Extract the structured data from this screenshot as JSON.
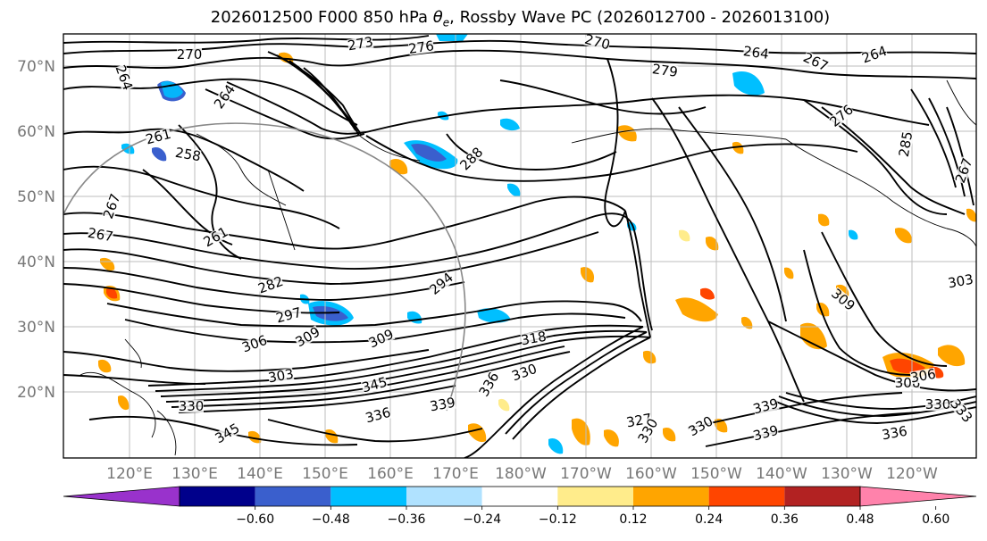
{
  "title": {
    "prefix": "2026012500 F000 850 hPa ",
    "symbol": "θ",
    "symbol_sub": "e",
    "suffix": ", Rossby Wave PC (2026012700 - 2026013100)"
  },
  "map": {
    "projection": "cylindrical (lon 110°E–110°W, lat 10°N–75°N)",
    "lat_ticks": [
      "70°N",
      "60°N",
      "50°N",
      "40°N",
      "30°N",
      "20°N"
    ],
    "lon_ticks": [
      "120°E",
      "130°E",
      "140°E",
      "150°E",
      "160°E",
      "170°E",
      "180°W",
      "170°W",
      "160°W",
      "150°W",
      "140°W",
      "130°W",
      "120°W"
    ],
    "gridlines": true,
    "contour_variable": "850 hPa equivalent potential temperature (K)",
    "contour_labels": [
      "270",
      "273",
      "276",
      "270",
      "264",
      "267",
      "264",
      "279",
      "264",
      "261",
      "258",
      "264",
      "276",
      "285",
      "288",
      "267",
      "267",
      "261",
      "267",
      "282",
      "294",
      "297",
      "306",
      "309",
      "309",
      "318",
      "303",
      "345",
      "330",
      "345",
      "336",
      "339",
      "336",
      "330",
      "327",
      "330",
      "330",
      "339",
      "339",
      "336",
      "306",
      "309",
      "303",
      "306",
      "330",
      "333"
    ],
    "shading_variable": "Rossby Wave PC",
    "coastline_color": "#000000"
  },
  "colorbar": {
    "tick_labels": [
      "−0.60",
      "−0.48",
      "−0.36",
      "−0.24",
      "−0.12",
      "0.12",
      "0.24",
      "0.36",
      "0.48",
      "0.60"
    ],
    "bins": [
      {
        "color": "#9932CC"
      },
      {
        "color": "#00008B"
      },
      {
        "color": "#3A5FCD"
      },
      {
        "color": "#00BFFF"
      },
      {
        "color": "#B0E2FF"
      },
      {
        "color": "#FFFFFF"
      },
      {
        "color": "#FFEC8B"
      },
      {
        "color": "#FFA500"
      },
      {
        "color": "#FF4500"
      },
      {
        "color": "#B22222"
      },
      {
        "color": "#FF82AB"
      }
    ],
    "extend": "both"
  }
}
